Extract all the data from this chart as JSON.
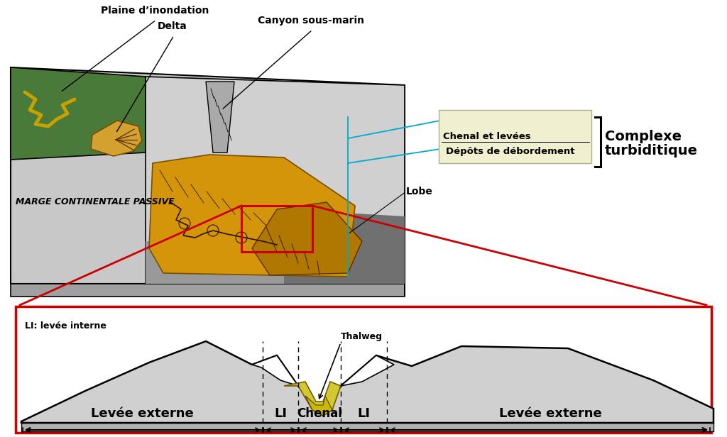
{
  "labels": {
    "plaine": "Plaine d’inondation",
    "delta": "Delta",
    "canyon": "Canyon sous-marin",
    "chenal_levees": "Chenal et levées",
    "depots": "Dépôts de débordement",
    "lobe": "Lobe",
    "complexe_line1": "Complexe",
    "complexe_line2": "turbiditique",
    "marge": "MARGE CONTINENTALE PASSIVE",
    "li_label": "LI: levée interne",
    "thalweg": "Thalweg",
    "levee_ext_left": "Levée externe",
    "li_left": "LI",
    "chenal": "Chenal",
    "li_right": "LI",
    "levee_ext_right": "Levée externe"
  },
  "colors": {
    "green": "#4a7a3a",
    "gray_light": "#cccccc",
    "gray_medium": "#aaaaaa",
    "gray_dark": "#888888",
    "gray_darker": "#666666",
    "orange_yellow": "#d4950a",
    "yellow": "#c8b800",
    "yellow_light": "#d4c830",
    "red": "#cc0000",
    "cyan": "#00aacc",
    "black": "#000000",
    "white": "#ffffff",
    "cream": "#f0f0d0",
    "brown": "#5a3000"
  }
}
